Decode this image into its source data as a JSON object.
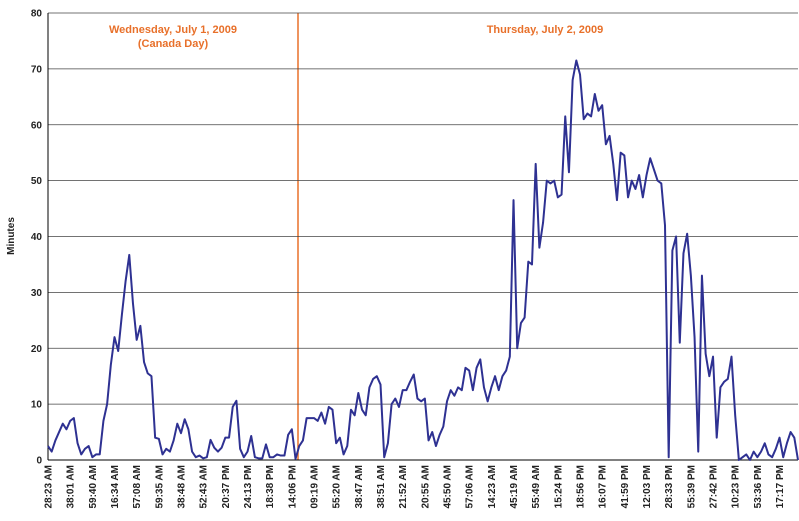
{
  "chart_data": {
    "type": "line",
    "y_label": "Minutes",
    "annotations": [
      "Wednesday, July 1, 2009",
      "(Canada Day)",
      "Thursday, July 2, 2009"
    ],
    "ylim": [
      0,
      80
    ],
    "yticks": [
      0,
      10,
      20,
      30,
      40,
      50,
      60,
      70,
      80
    ],
    "grid": true,
    "categories": [
      "28:23 AM",
      null,
      null,
      null,
      null,
      null,
      "38:01 AM",
      null,
      null,
      null,
      null,
      null,
      "59:40 AM",
      null,
      null,
      null,
      null,
      null,
      "16:34 AM",
      null,
      null,
      null,
      null,
      null,
      "57:08 AM",
      null,
      null,
      null,
      null,
      null,
      "59:35 AM",
      null,
      null,
      null,
      null,
      null,
      "38:48 AM",
      null,
      null,
      null,
      null,
      null,
      "52:43 AM",
      null,
      null,
      null,
      null,
      null,
      "20:37 PM",
      null,
      null,
      null,
      null,
      null,
      "24:13 PM",
      null,
      null,
      null,
      null,
      null,
      "18:38 PM",
      null,
      null,
      null,
      null,
      null,
      "14:06 PM",
      null,
      null,
      null,
      null,
      null,
      "09:19 AM",
      null,
      null,
      null,
      null,
      null,
      "55:20 AM",
      null,
      null,
      null,
      null,
      null,
      "38:47 AM",
      null,
      null,
      null,
      null,
      null,
      "38:51 AM",
      null,
      null,
      null,
      null,
      null,
      "21:52 AM",
      null,
      null,
      null,
      null,
      null,
      "20:55 AM",
      null,
      null,
      null,
      null,
      null,
      "45:50 AM",
      null,
      null,
      null,
      null,
      null,
      "57:06 AM",
      null,
      null,
      null,
      null,
      null,
      "14:23 AM",
      null,
      null,
      null,
      null,
      null,
      "45:19 AM",
      null,
      null,
      null,
      null,
      null,
      "55:49 AM",
      null,
      null,
      null,
      null,
      null,
      "15:24 PM",
      null,
      null,
      null,
      null,
      null,
      "18:56 PM",
      null,
      null,
      null,
      null,
      null,
      "16:07 PM",
      null,
      null,
      null,
      null,
      null,
      "41:59 PM",
      null,
      null,
      null,
      null,
      null,
      "12:03 PM",
      null,
      null,
      null,
      null,
      null,
      "28:33 PM",
      null,
      null,
      null,
      null,
      null,
      "55:39 PM",
      null,
      null,
      null,
      null,
      null,
      "27:42 PM",
      null,
      null,
      null,
      null,
      null,
      "10:23 PM",
      null,
      null,
      null,
      null,
      null,
      "53:36 PM",
      null,
      null,
      null,
      null,
      null,
      "17:17 PM",
      null,
      null,
      null,
      null,
      null
    ],
    "series": [
      {
        "name": "Minutes",
        "color": "#2e3192",
        "values": [
          2.5,
          1.5,
          3.5,
          5,
          6.5,
          5.5,
          7,
          7.5,
          3,
          1,
          2,
          2.5,
          0.5,
          1,
          1,
          7,
          10,
          17,
          22,
          19.5,
          26,
          32,
          36.7,
          28,
          21.5,
          24,
          17.5,
          15.5,
          15,
          4,
          3.8,
          1,
          2,
          1.5,
          3.5,
          6.5,
          4.8,
          7.3,
          5.5,
          1.5,
          0.5,
          0.8,
          0.3,
          0.5,
          3.6,
          2.2,
          1.5,
          2.2,
          4,
          4,
          9.5,
          10.6,
          2,
          0.5,
          1.5,
          4.3,
          0.5,
          0.3,
          0.3,
          2.8,
          0.5,
          0.5,
          1,
          0.8,
          0.8,
          4.5,
          5.5,
          0.2,
          2.5,
          3.5,
          7.5,
          7.5,
          7.5,
          7,
          8.5,
          6.5,
          9.5,
          9,
          3,
          4,
          1,
          2.5,
          9,
          8,
          12,
          9,
          8,
          13,
          14.5,
          15,
          13.5,
          0.5,
          3,
          10,
          11,
          9.5,
          12.5,
          12.5,
          14,
          15.3,
          11,
          10.5,
          11,
          3.5,
          5,
          2.5,
          4.5,
          6,
          10.5,
          12.5,
          11.5,
          13,
          12.5,
          16.5,
          16,
          12.5,
          16.5,
          18,
          13,
          10.5,
          13,
          15,
          12.5,
          15,
          16,
          18.5,
          46.5,
          20,
          24.5,
          25.5,
          35.5,
          35,
          53,
          38,
          42.5,
          50,
          49.5,
          50,
          47,
          47.5,
          61.5,
          51.5,
          68,
          71.5,
          69,
          61,
          62,
          61.5,
          65.5,
          62.5,
          63.5,
          56.5,
          58,
          53,
          46.5,
          55,
          54.5,
          47,
          50,
          48.5,
          51,
          47,
          51,
          54,
          52,
          50,
          49.5,
          42,
          0.5,
          37.5,
          40,
          21,
          37,
          40.5,
          33,
          22,
          1.5,
          33,
          19,
          15,
          18.5,
          4,
          13,
          14,
          14.5,
          18.5,
          8,
          0,
          0.5,
          1,
          0,
          1.5,
          0.5,
          1.5,
          3,
          1,
          0.5,
          2,
          4,
          0.5,
          3,
          5,
          4,
          0
        ]
      }
    ]
  }
}
